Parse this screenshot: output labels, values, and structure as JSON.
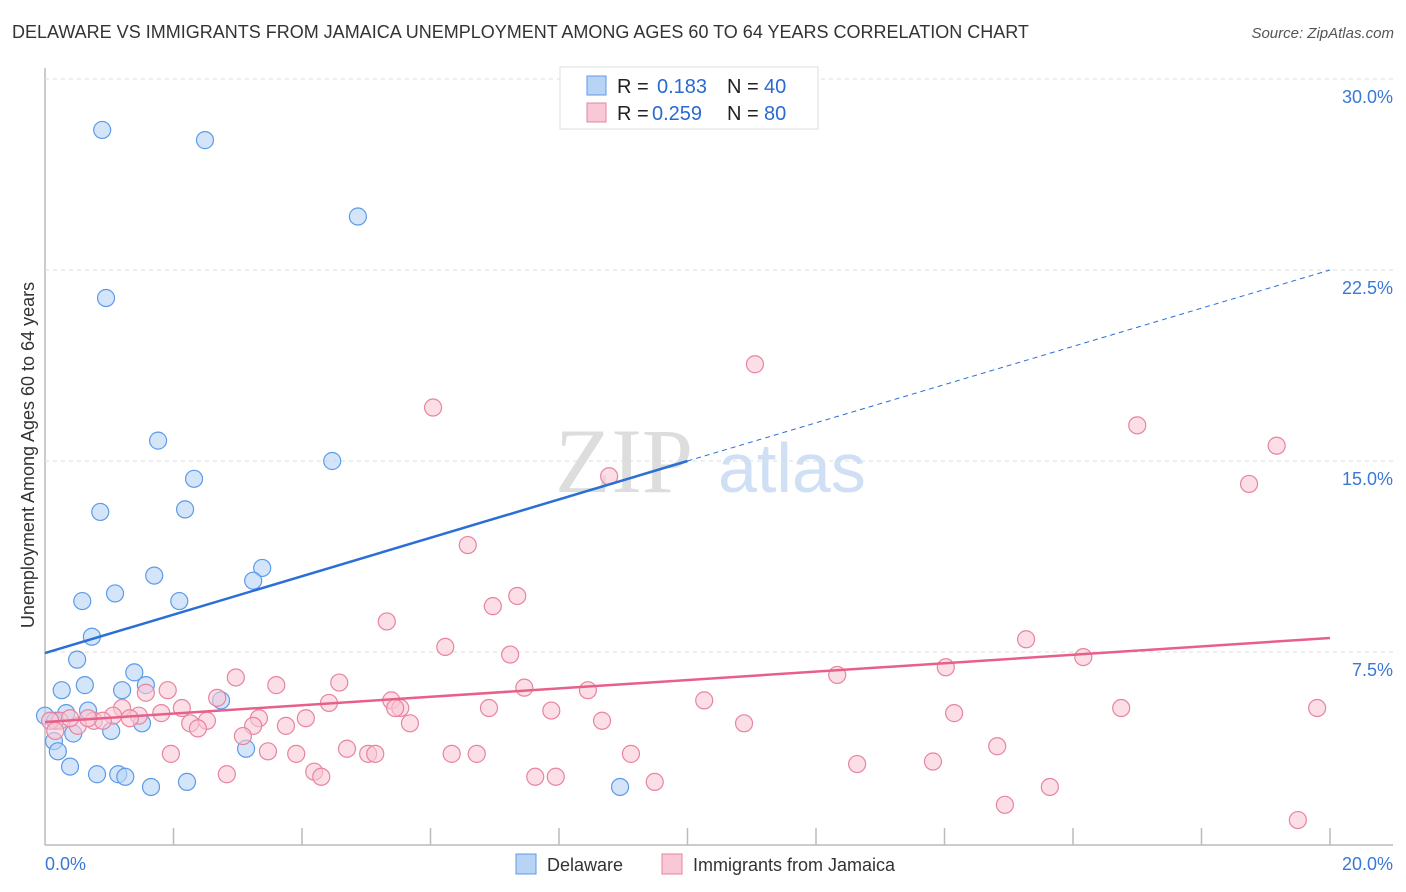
{
  "title": "DELAWARE VS IMMIGRANTS FROM JAMAICA UNEMPLOYMENT AMONG AGES 60 TO 64 YEARS CORRELATION CHART",
  "source": "Source: ZipAtlas.com",
  "watermark": "ZIPatlas",
  "chart_data": {
    "type": "scatter",
    "title": "DELAWARE VS IMMIGRANTS FROM JAMAICA UNEMPLOYMENT AMONG AGES 60 TO 64 YEARS CORRELATION CHART",
    "xlabel": "",
    "ylabel": "Unemployment Among Ages 60 to 64 years",
    "xlim": [
      0,
      20
    ],
    "ylim": [
      0,
      30
    ],
    "x_tick_labels": [
      "0.0%",
      "20.0%"
    ],
    "y_ticks": [
      7.5,
      15,
      22.5,
      30
    ],
    "y_tick_labels": [
      "7.5%",
      "15.0%",
      "22.5%",
      "30.0%"
    ],
    "grid": true,
    "legend": {
      "placement": "top-center",
      "entries": [
        {
          "r_label": "R = ",
          "r": "0.183",
          "n_label": "N = ",
          "n": "40"
        },
        {
          "r_label": "R = ",
          "r": "0.259",
          "n_label": "N = ",
          "n": "80"
        }
      ]
    },
    "series": [
      {
        "name": "Delaware",
        "color": "#5b9be8",
        "fill": "#b9d3f5",
        "trend": {
          "x": [
            0,
            10,
            20
          ],
          "y": [
            7.46,
            15.0,
            22.5
          ],
          "dashed_after": 10,
          "color": "#2a6fd6"
        },
        "points": [
          [
            0.89,
            28.0
          ],
          [
            2.49,
            27.6
          ],
          [
            4.87,
            24.6
          ],
          [
            0.95,
            21.4
          ],
          [
            1.76,
            15.8
          ],
          [
            4.47,
            15.0
          ],
          [
            2.32,
            14.3
          ],
          [
            0.86,
            13.0
          ],
          [
            2.18,
            13.1
          ],
          [
            1.7,
            10.5
          ],
          [
            3.38,
            10.8
          ],
          [
            3.24,
            10.3
          ],
          [
            0.58,
            9.5
          ],
          [
            2.09,
            9.5
          ],
          [
            1.09,
            9.8
          ],
          [
            0.73,
            8.1
          ],
          [
            0.5,
            7.2
          ],
          [
            0.26,
            6.0
          ],
          [
            0.62,
            6.2
          ],
          [
            1.39,
            6.7
          ],
          [
            1.57,
            6.2
          ],
          [
            1.2,
            6.0
          ],
          [
            2.74,
            5.6
          ],
          [
            0.67,
            5.2
          ],
          [
            0.33,
            5.1
          ],
          [
            0.0,
            5.0
          ],
          [
            0.16,
            4.8
          ],
          [
            1.51,
            4.7
          ],
          [
            1.03,
            4.4
          ],
          [
            0.44,
            4.3
          ],
          [
            0.14,
            4.0
          ],
          [
            0.2,
            3.6
          ],
          [
            3.13,
            3.7
          ],
          [
            0.39,
            3.0
          ],
          [
            0.81,
            2.7
          ],
          [
            1.14,
            2.7
          ],
          [
            1.25,
            2.6
          ],
          [
            1.65,
            2.2
          ],
          [
            2.21,
            2.4
          ],
          [
            8.95,
            2.2
          ]
        ]
      },
      {
        "name": "Immigrants from Jamaica",
        "color": "#e8849f",
        "fill": "#f8c8d6",
        "trend": {
          "x": [
            0,
            20
          ],
          "y": [
            4.75,
            8.05
          ],
          "color": "#e8608a"
        },
        "points": [
          [
            11.05,
            18.8
          ],
          [
            6.04,
            17.1
          ],
          [
            17.0,
            16.4
          ],
          [
            19.17,
            15.6
          ],
          [
            8.78,
            14.4
          ],
          [
            18.74,
            14.1
          ],
          [
            6.58,
            11.7
          ],
          [
            7.35,
            9.7
          ],
          [
            6.97,
            9.3
          ],
          [
            5.32,
            8.7
          ],
          [
            6.23,
            7.7
          ],
          [
            15.27,
            8.0
          ],
          [
            7.24,
            7.4
          ],
          [
            16.16,
            7.3
          ],
          [
            14.02,
            6.9
          ],
          [
            12.33,
            6.6
          ],
          [
            2.97,
            6.5
          ],
          [
            4.58,
            6.3
          ],
          [
            3.6,
            6.2
          ],
          [
            1.91,
            6.0
          ],
          [
            7.46,
            6.1
          ],
          [
            8.45,
            6.0
          ],
          [
            1.57,
            5.9
          ],
          [
            2.68,
            5.7
          ],
          [
            4.42,
            5.5
          ],
          [
            5.39,
            5.6
          ],
          [
            10.26,
            5.6
          ],
          [
            1.2,
            5.3
          ],
          [
            2.13,
            5.3
          ],
          [
            5.53,
            5.3
          ],
          [
            16.75,
            5.3
          ],
          [
            19.8,
            5.3
          ],
          [
            6.91,
            5.3
          ],
          [
            7.88,
            5.2
          ],
          [
            5.45,
            5.3
          ],
          [
            14.15,
            5.1
          ],
          [
            1.81,
            5.1
          ],
          [
            1.46,
            5.0
          ],
          [
            1.06,
            5.0
          ],
          [
            3.33,
            4.9
          ],
          [
            4.06,
            4.9
          ],
          [
            2.52,
            4.8
          ],
          [
            8.67,
            4.8
          ],
          [
            5.68,
            4.7
          ],
          [
            2.26,
            4.7
          ],
          [
            0.76,
            4.8
          ],
          [
            0.23,
            4.8
          ],
          [
            0.51,
            4.6
          ],
          [
            0.9,
            4.8
          ],
          [
            3.24,
            4.6
          ],
          [
            10.88,
            4.7
          ],
          [
            3.75,
            4.6
          ],
          [
            2.38,
            4.5
          ],
          [
            3.08,
            4.2
          ],
          [
            1.96,
            3.5
          ],
          [
            4.7,
            3.7
          ],
          [
            3.47,
            3.6
          ],
          [
            3.91,
            3.5
          ],
          [
            5.03,
            3.5
          ],
          [
            5.14,
            3.5
          ],
          [
            6.33,
            3.5
          ],
          [
            6.72,
            3.5
          ],
          [
            9.12,
            3.5
          ],
          [
            14.82,
            3.8
          ],
          [
            13.82,
            3.2
          ],
          [
            12.64,
            3.1
          ],
          [
            2.83,
            2.7
          ],
          [
            4.19,
            2.8
          ],
          [
            4.3,
            2.6
          ],
          [
            7.63,
            2.6
          ],
          [
            7.95,
            2.6
          ],
          [
            9.49,
            2.4
          ],
          [
            15.64,
            2.2
          ],
          [
            14.94,
            1.5
          ],
          [
            19.5,
            0.9
          ],
          [
            0.08,
            4.8
          ],
          [
            0.16,
            4.4
          ],
          [
            0.39,
            4.9
          ],
          [
            0.67,
            4.9
          ],
          [
            1.32,
            4.9
          ]
        ]
      }
    ]
  }
}
